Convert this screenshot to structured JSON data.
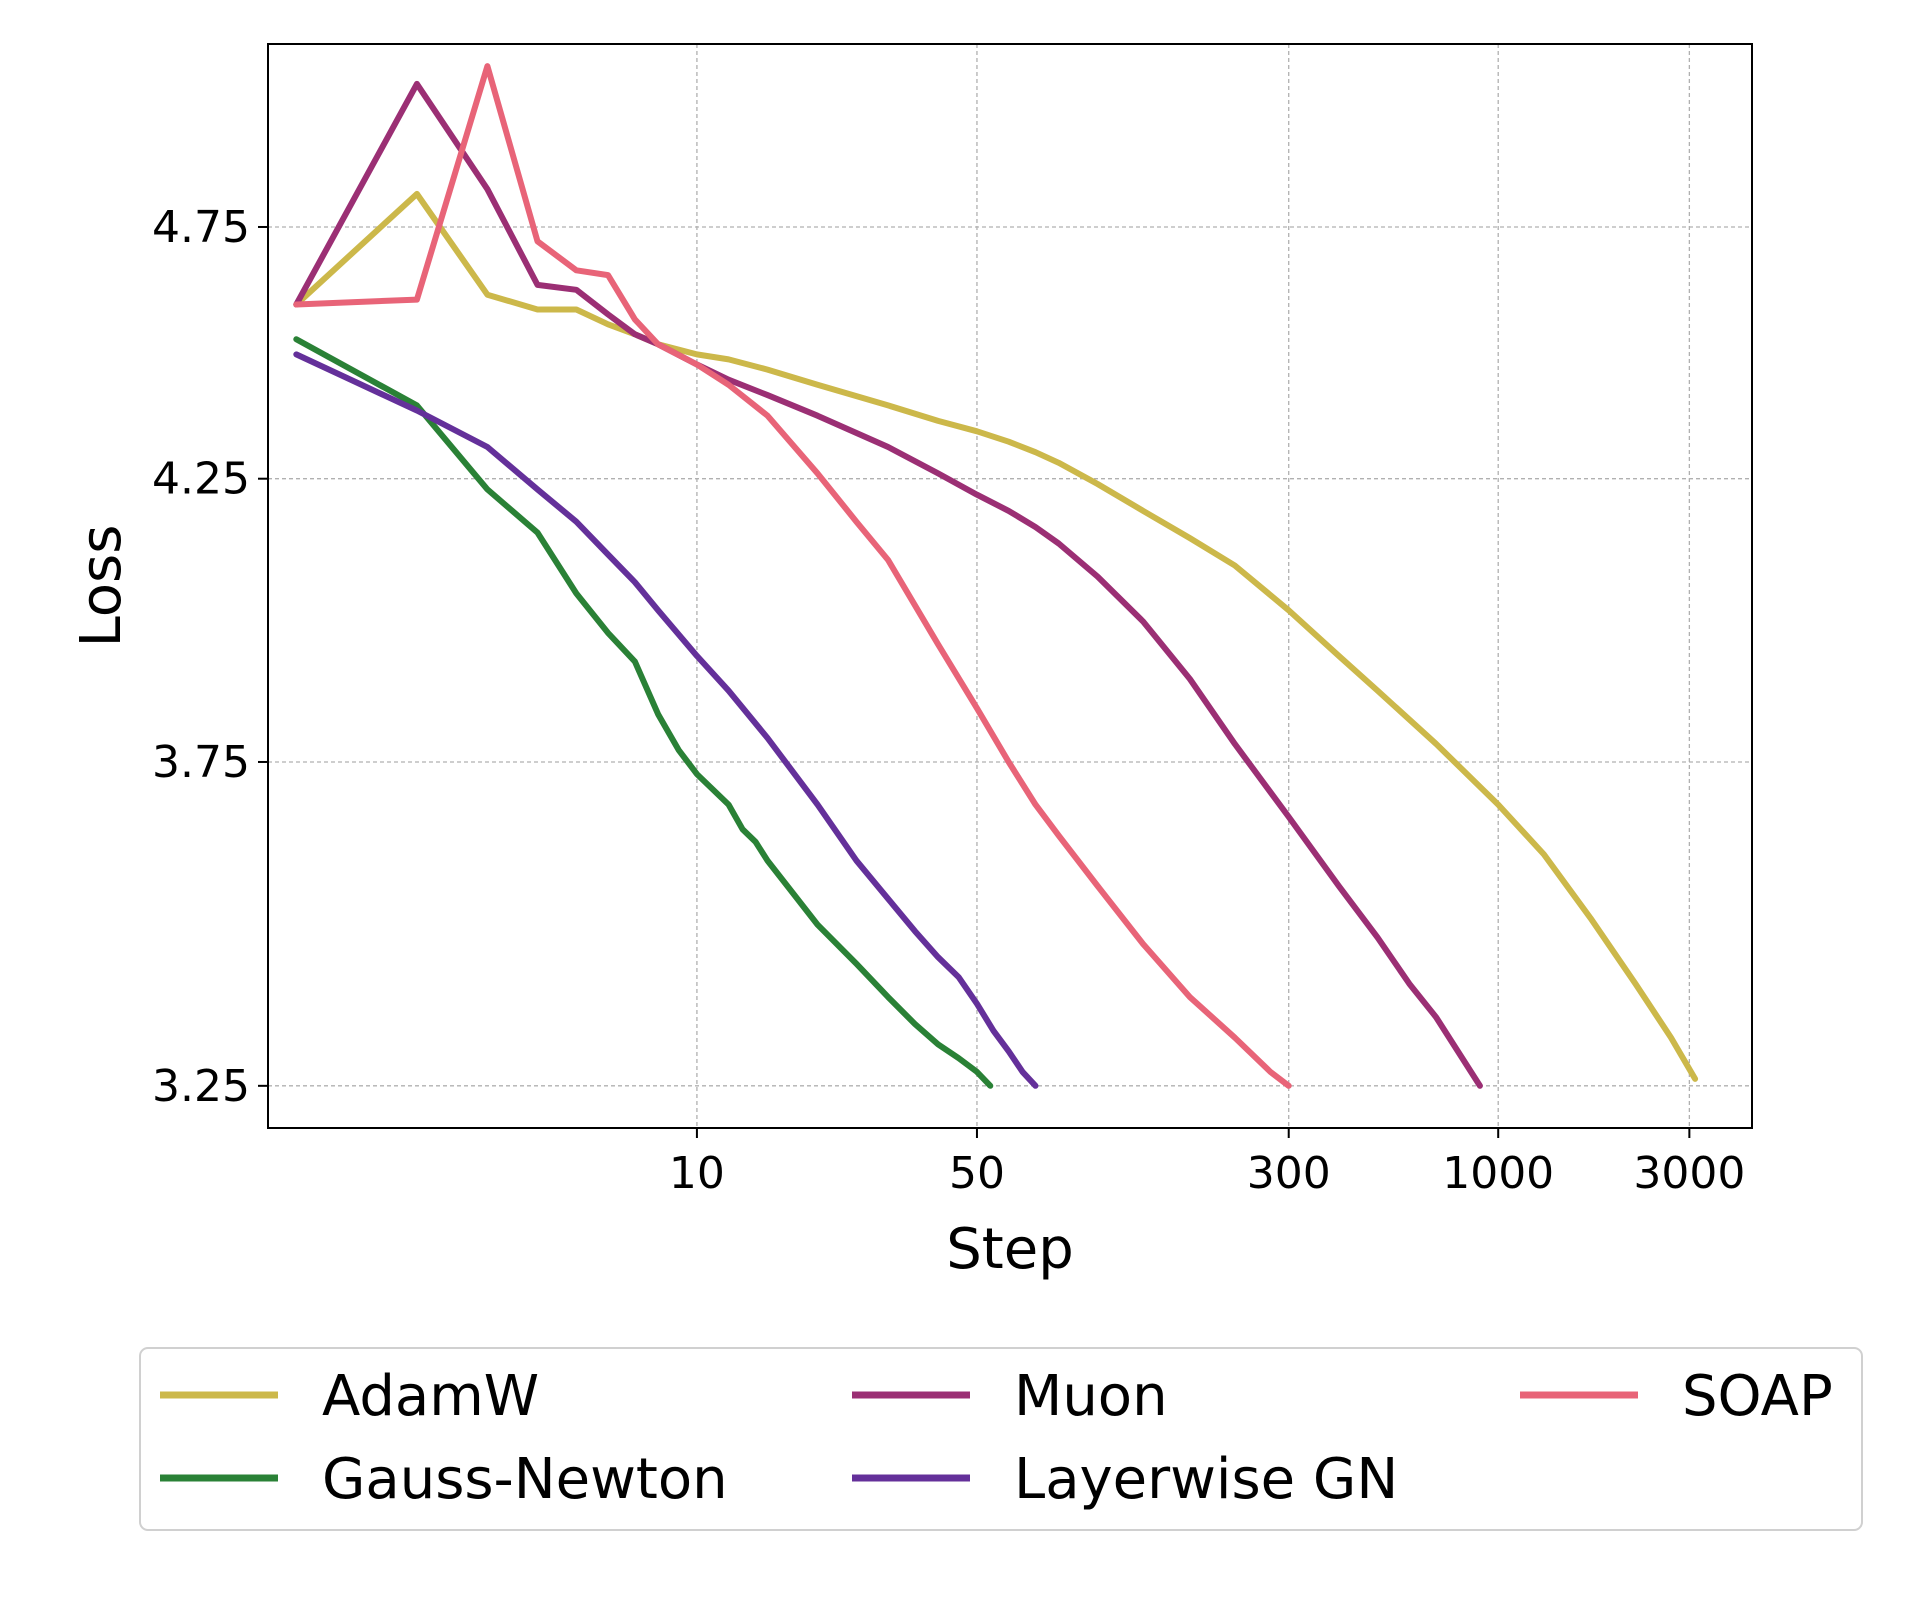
{
  "chart_data": {
    "type": "line",
    "title": "",
    "xlabel": "Step",
    "ylabel": "Loss",
    "xscale": "log",
    "yscale": "log",
    "xlim": [
      0.85,
      4300
    ],
    "ylim": [
      3.19,
      5.15
    ],
    "xticks": [
      10,
      50,
      300,
      1000,
      3000
    ],
    "xtick_labels": [
      "10",
      "50",
      "300",
      "1000",
      "3000"
    ],
    "yticks": [
      3.25,
      3.75,
      4.25,
      4.75
    ],
    "ytick_labels": [
      "3.25",
      "3.75",
      "4.25",
      "4.75"
    ],
    "grid": true,
    "legend": {
      "position": "bottom",
      "columns": 3
    },
    "series": [
      {
        "name": "AdamW",
        "color": "#ccb84a",
        "x": [
          1,
          2,
          3,
          4,
          5,
          6,
          7,
          8,
          10,
          12,
          15,
          20,
          30,
          40,
          50,
          60,
          70,
          80,
          100,
          130,
          170,
          220,
          300,
          400,
          500,
          700,
          1000,
          1300,
          1700,
          2200,
          2700,
          3100
        ],
        "y": [
          4.59,
          4.82,
          4.61,
          4.58,
          4.58,
          4.55,
          4.53,
          4.51,
          4.49,
          4.48,
          4.46,
          4.43,
          4.39,
          4.36,
          4.34,
          4.32,
          4.3,
          4.28,
          4.24,
          4.19,
          4.14,
          4.09,
          4.01,
          3.93,
          3.87,
          3.78,
          3.68,
          3.6,
          3.5,
          3.4,
          3.32,
          3.26
        ]
      },
      {
        "name": "Muon",
        "color": "#9b2f74",
        "x": [
          1,
          2,
          3,
          4,
          5,
          6,
          7,
          8,
          10,
          12,
          15,
          20,
          30,
          40,
          50,
          60,
          70,
          80,
          100,
          130,
          170,
          220,
          300,
          400,
          500,
          600,
          700,
          900
        ],
        "y": [
          4.59,
          5.06,
          4.83,
          4.63,
          4.62,
          4.57,
          4.53,
          4.51,
          4.47,
          4.44,
          4.41,
          4.37,
          4.31,
          4.26,
          4.22,
          4.19,
          4.16,
          4.13,
          4.07,
          3.99,
          3.89,
          3.78,
          3.66,
          3.55,
          3.47,
          3.4,
          3.35,
          3.25
        ]
      },
      {
        "name": "SOAP",
        "color": "#e86478",
        "x": [
          1,
          2,
          3,
          4,
          5,
          6,
          7,
          8,
          10,
          12,
          15,
          20,
          25,
          30,
          40,
          50,
          60,
          70,
          80,
          100,
          130,
          170,
          220,
          270,
          300
        ],
        "y": [
          4.59,
          4.6,
          5.1,
          4.72,
          4.66,
          4.65,
          4.56,
          4.51,
          4.47,
          4.43,
          4.37,
          4.26,
          4.17,
          4.1,
          3.95,
          3.84,
          3.75,
          3.68,
          3.63,
          3.55,
          3.46,
          3.38,
          3.32,
          3.27,
          3.25
        ]
      },
      {
        "name": "Gauss-Newton",
        "color": "#2a8136",
        "x": [
          1,
          2,
          3,
          4,
          5,
          6,
          7,
          8,
          9,
          10,
          12,
          13,
          14,
          15,
          20,
          25,
          30,
          35,
          40,
          45,
          50,
          54
        ],
        "y": [
          4.52,
          4.39,
          4.23,
          4.15,
          4.04,
          3.97,
          3.92,
          3.83,
          3.77,
          3.73,
          3.68,
          3.64,
          3.62,
          3.59,
          3.49,
          3.43,
          3.38,
          3.34,
          3.31,
          3.29,
          3.27,
          3.25
        ]
      },
      {
        "name": "Layerwise GN",
        "color": "#64309a",
        "x": [
          1,
          2,
          3,
          4,
          5,
          6,
          7,
          8,
          10,
          12,
          15,
          20,
          25,
          30,
          35,
          40,
          45,
          50,
          55,
          60,
          65,
          70
        ],
        "y": [
          4.49,
          4.38,
          4.31,
          4.23,
          4.17,
          4.11,
          4.06,
          4.01,
          3.93,
          3.87,
          3.79,
          3.68,
          3.59,
          3.53,
          3.48,
          3.44,
          3.41,
          3.37,
          3.33,
          3.3,
          3.27,
          3.25
        ]
      }
    ]
  }
}
